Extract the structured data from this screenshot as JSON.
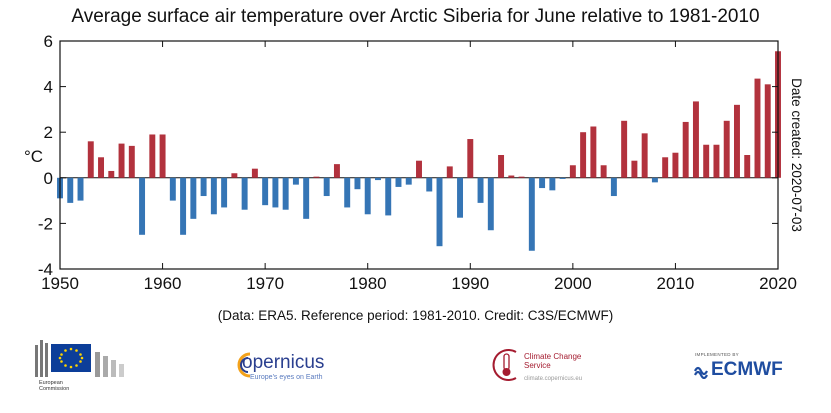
{
  "chart_data": {
    "type": "bar",
    "title": "Average surface air temperature over Arctic Siberia for June relative to 1981-2010",
    "ylabel": "°C",
    "right_label": "Date created: 2020-07-03",
    "ylim": [
      -4,
      6
    ],
    "yticks": [
      -4,
      -2,
      0,
      2,
      4,
      6
    ],
    "xlim": [
      1950,
      2020
    ],
    "xticks": [
      1950,
      1960,
      1970,
      1980,
      1990,
      2000,
      2010,
      2020
    ],
    "positive_color": "#b2323d",
    "negative_color": "#3575b5",
    "x": [
      1950,
      1951,
      1952,
      1953,
      1954,
      1955,
      1956,
      1957,
      1958,
      1959,
      1960,
      1961,
      1962,
      1963,
      1964,
      1965,
      1966,
      1967,
      1968,
      1969,
      1970,
      1971,
      1972,
      1973,
      1974,
      1975,
      1976,
      1977,
      1978,
      1979,
      1980,
      1981,
      1982,
      1983,
      1984,
      1985,
      1986,
      1987,
      1988,
      1989,
      1990,
      1991,
      1992,
      1993,
      1994,
      1995,
      1996,
      1997,
      1998,
      1999,
      2000,
      2001,
      2002,
      2003,
      2004,
      2005,
      2006,
      2007,
      2008,
      2009,
      2010,
      2011,
      2012,
      2013,
      2014,
      2015,
      2016,
      2017,
      2018,
      2019,
      2020
    ],
    "values": [
      -0.9,
      -1.1,
      -1.0,
      1.6,
      0.9,
      0.3,
      1.5,
      1.4,
      -2.5,
      1.9,
      1.9,
      -1.0,
      -2.5,
      -1.8,
      -0.8,
      -1.6,
      -1.3,
      0.2,
      -1.4,
      0.4,
      -1.2,
      -1.3,
      -1.4,
      -0.3,
      -1.8,
      0.05,
      -0.8,
      0.6,
      -1.3,
      -0.5,
      -1.6,
      -0.1,
      -1.65,
      -0.4,
      -0.3,
      0.75,
      -0.6,
      -3.0,
      0.5,
      -1.75,
      1.7,
      -1.1,
      -2.3,
      1.0,
      0.1,
      0.05,
      -3.2,
      -0.45,
      -0.55,
      -0.05,
      0.55,
      2.0,
      2.25,
      0.55,
      -0.8,
      2.5,
      0.75,
      1.95,
      -0.2,
      0.9,
      1.1,
      2.45,
      3.35,
      1.45,
      1.45,
      2.5,
      3.2,
      1.0,
      4.35,
      4.1,
      5.55
    ]
  },
  "credit": "(Data: ERA5.  Reference period: 1981-2010.  Credit: C3S/ECMWF)",
  "logos": {
    "eu_caption_line1": "European",
    "eu_caption_line2": "Commission",
    "copernicus_word": "opernicus",
    "copernicus_tagline": "Europe's eyes on Earth",
    "c3s_name": "Climate Change Service",
    "c3s_url": "climate.copernicus.eu",
    "ecmwf_small": "IMPLEMENTED BY",
    "ecmwf_word": "ECMWF",
    "eu_blue": "#0c3e99",
    "eu_gold": "#ffd400"
  }
}
